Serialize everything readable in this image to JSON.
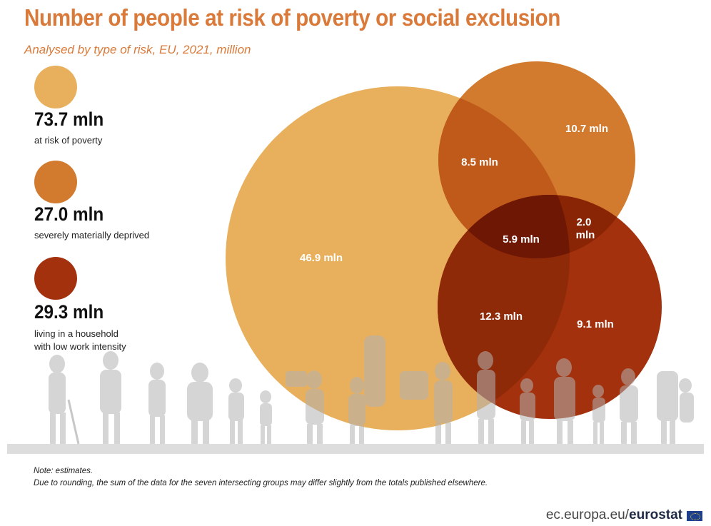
{
  "title": "Number of people at risk of poverty or social exclusion",
  "subtitle": "Analysed by type of risk, EU, 2021, million",
  "legend": [
    {
      "value": "73.7 mln",
      "label": "at risk of poverty",
      "color": "#e8b05c"
    },
    {
      "value": "27.0 mln",
      "label": "severely materially deprived",
      "color": "#d27a2e"
    },
    {
      "value": "29.3 mln",
      "label": "living in a household\nwith low work intensity",
      "color": "#a3310e"
    }
  ],
  "chart_data": {
    "type": "venn",
    "sets": [
      {
        "name": "at risk of poverty",
        "total": 73.7,
        "color": "#e8b05c"
      },
      {
        "name": "severely materially deprived",
        "total": 27.0,
        "color": "#d27a2e"
      },
      {
        "name": "living in a household with low work intensity",
        "total": 29.3,
        "color": "#a3310e"
      }
    ],
    "regions": [
      {
        "sets": [
          "at risk of poverty"
        ],
        "value": 46.9,
        "label": "46.9 mln"
      },
      {
        "sets": [
          "severely materially deprived"
        ],
        "value": 10.7,
        "label": "10.7 mln"
      },
      {
        "sets": [
          "at risk of poverty",
          "severely materially deprived"
        ],
        "value": 8.5,
        "label": "8.5 mln"
      },
      {
        "sets": [
          "at risk of poverty",
          "severely materially deprived",
          "living in a household with low work intensity"
        ],
        "value": 5.9,
        "label": "5.9 mln"
      },
      {
        "sets": [
          "severely materially deprived",
          "living in a household with low work intensity"
        ],
        "value": 2.0,
        "label": "2.0 mln"
      },
      {
        "sets": [
          "at risk of poverty",
          "living in a household with low work intensity"
        ],
        "value": 12.3,
        "label": "12.3 mln"
      },
      {
        "sets": [
          "living in a household with low work intensity"
        ],
        "value": 9.1,
        "label": "9.1 mln"
      }
    ]
  },
  "note": {
    "line1": "Note: estimates.",
    "line2": "Due to rounding, the sum of the data for the seven intersecting groups may differ slightly from the totals published elsewhere."
  },
  "source": {
    "prefix": "ec.europa.eu/",
    "brand": "eurostat"
  }
}
